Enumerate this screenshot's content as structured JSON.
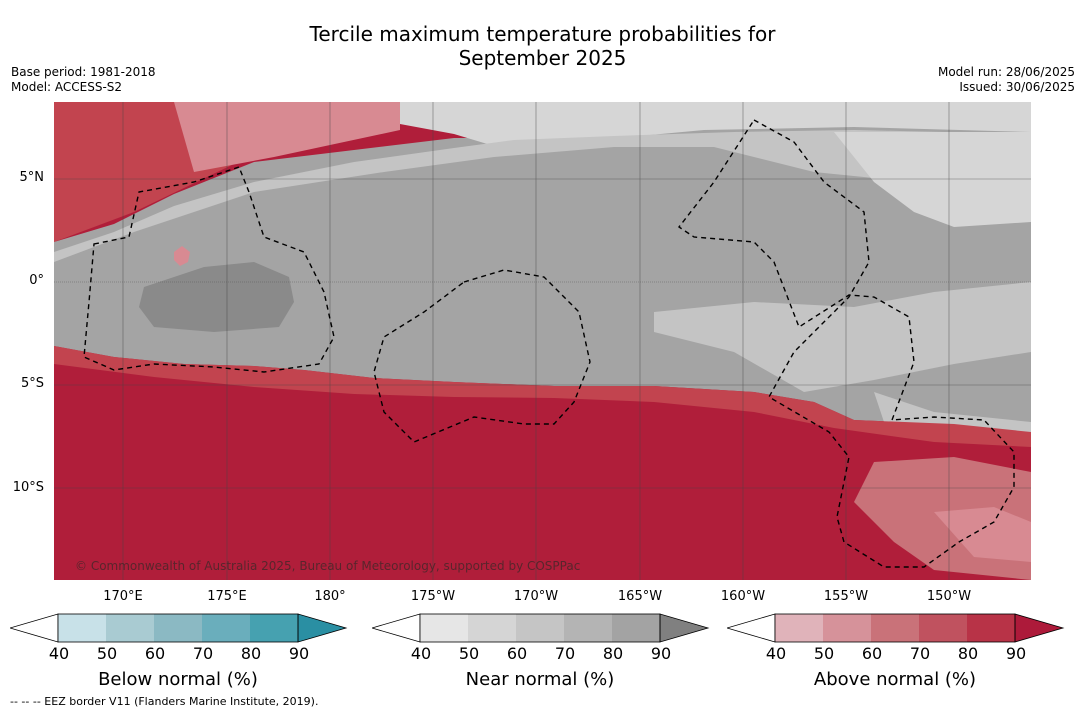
{
  "title": {
    "line1": "Tercile maximum temperature probabilities for",
    "line2": "September 2025"
  },
  "meta_left": {
    "base_period": "Base period: 1981-2018",
    "model": "Model: ACCESS-S2"
  },
  "meta_right": {
    "model_run": "Model run: 28/06/2025",
    "issued": "Issued: 30/06/2025"
  },
  "map": {
    "lat_labels": [
      "5°N",
      "0°",
      "5°S",
      "10°S"
    ],
    "lon_labels": [
      "170°E",
      "175°E",
      "180°",
      "175°W",
      "170°W",
      "165°W",
      "160°W",
      "155°W",
      "150°W"
    ],
    "copyright": "© Commonwealth of Australia 2025, Bureau of Meteorology, supported by COSPPac",
    "colors": {
      "above_dark": "#b01e3a",
      "above_mid": "#c2444f",
      "above_light": "#d88a92",
      "near_light": "#d6d6d6",
      "near_mid": "#c4c4c4",
      "near_dark": "#a4a4a4",
      "near_darkest": "#8a8a8a"
    }
  },
  "colorbars": [
    {
      "title": "Below normal (%)",
      "ticks": [
        "40",
        "50",
        "60",
        "70",
        "80",
        "90"
      ],
      "colors": [
        "#ffffff",
        "#c8e1e8",
        "#a9cbd2",
        "#8bb9c3",
        "#6aaebc",
        "#46a1b0",
        "#2a8fa3"
      ]
    },
    {
      "title": "Near normal (%)",
      "ticks": [
        "40",
        "50",
        "60",
        "70",
        "80",
        "90"
      ],
      "colors": [
        "#ffffff",
        "#e6e6e6",
        "#d5d5d5",
        "#c5c5c5",
        "#b4b4b4",
        "#a3a3a3",
        "#808080"
      ]
    },
    {
      "title": "Above normal (%)",
      "ticks": [
        "40",
        "50",
        "60",
        "70",
        "80",
        "90"
      ],
      "colors": [
        "#ffffff",
        "#e0b3ba",
        "#d6929a",
        "#c97279",
        "#c0525f",
        "#b83347",
        "#ad1a3a"
      ]
    }
  ],
  "footnote": "--  --  -- EEZ border V11 (Flanders Marine Institute, 2019)."
}
